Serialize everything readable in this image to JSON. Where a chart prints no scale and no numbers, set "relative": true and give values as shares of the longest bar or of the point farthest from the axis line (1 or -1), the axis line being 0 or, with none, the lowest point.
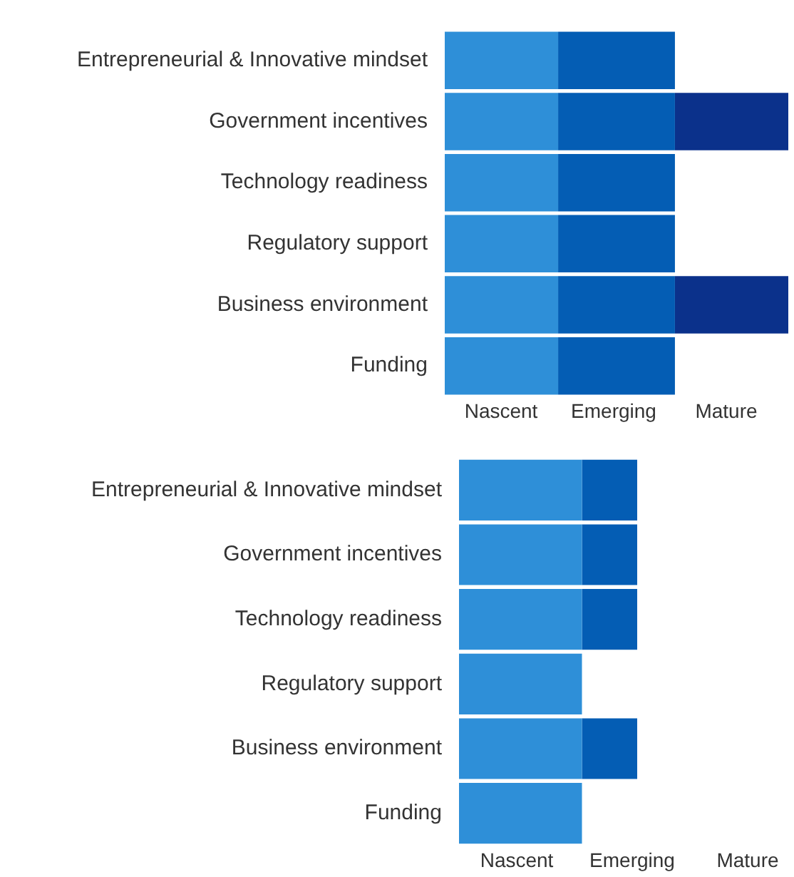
{
  "chart_data": [
    {
      "type": "bar",
      "orientation": "horizontal",
      "stacked": true,
      "relative": true,
      "categories": [
        "Entrepreneurial & Innovative mindset",
        "Government incentives",
        "Technology readiness",
        "Regulatory support",
        "Business environment",
        "Funding"
      ],
      "annotations": [
        "Nascent",
        "Emerging",
        "Mature"
      ],
      "grid": false,
      "legend": false,
      "series": [
        {
          "color": "#2e8fd8",
          "values": [
            0.33,
            0.33,
            0.33,
            0.33,
            0.33,
            0.33
          ]
        },
        {
          "color": "#045db4",
          "values": [
            0.34,
            0.34,
            0.34,
            0.34,
            0.34,
            0.34
          ]
        },
        {
          "color": "#0b318b",
          "values": [
            null,
            0.33,
            null,
            null,
            0.33,
            null
          ]
        }
      ]
    },
    {
      "type": "bar",
      "orientation": "horizontal",
      "stacked": true,
      "relative": true,
      "categories": [
        "Entrepreneurial & Innovative mindset",
        "Government incentives",
        "Technology readiness",
        "Regulatory support",
        "Business environment",
        "Funding"
      ],
      "annotations": [
        "Nascent",
        "Emerging",
        "Mature"
      ],
      "grid": false,
      "legend": false,
      "series": [
        {
          "color": "#2e8fd8",
          "values": [
            0.69,
            0.69,
            0.69,
            0.69,
            0.69,
            0.69
          ]
        },
        {
          "color": "#045db4",
          "values": [
            0.31,
            0.31,
            0.31,
            null,
            0.31,
            null
          ]
        }
      ]
    }
  ]
}
